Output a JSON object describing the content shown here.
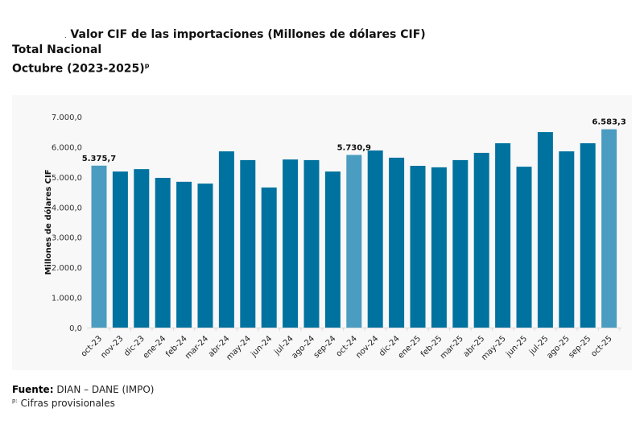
{
  "title": {
    "line1_prefix": ".",
    "line1": "Valor CIF de las importaciones (Millones de dólares CIF)",
    "line2": "Total Nacional",
    "line3": "Octubre (2023-2025)",
    "line3_sup": "p"
  },
  "footer": {
    "source_label": "Fuente:",
    "source_text": "DIAN – DANE (IMPO)",
    "note_sup": "p:",
    "note_text": "Cifras provisionales"
  },
  "colors": {
    "bar": "#00729f",
    "highlight": "#4a9cc0"
  },
  "chart_data": {
    "type": "bar",
    "title": "Valor CIF de las importaciones (Millones de dólares CIF)",
    "xlabel": "",
    "ylabel": "Millones de dólares CIF",
    "ylim": [
      0,
      7000
    ],
    "yticks": [
      0,
      1000,
      2000,
      3000,
      4000,
      5000,
      6000,
      7000
    ],
    "ytick_labels": [
      "0,0",
      "1.000,0",
      "2.000,0",
      "3.000,0",
      "4.000,0",
      "5.000,0",
      "6.000,0",
      "7.000,0"
    ],
    "grid": false,
    "categories": [
      "oct-23",
      "nov-23",
      "dic-23",
      "ene-24",
      "feb-24",
      "mar-24",
      "abr-24",
      "may-24",
      "jun-24",
      "jul-24",
      "ago-24",
      "sep-24",
      "oct-24",
      "nov-24",
      "dic-24",
      "ene-25",
      "feb-25",
      "mar-25",
      "abr-25",
      "may-25",
      "jun-25",
      "jul-25",
      "ago-25",
      "sep-25",
      "oct-25"
    ],
    "values": [
      5375.7,
      5180,
      5260,
      4970,
      4840,
      4780,
      5850,
      5560,
      4650,
      5580,
      5560,
      5180,
      5730.9,
      5880,
      5640,
      5370,
      5320,
      5560,
      5800,
      6120,
      5340,
      6490,
      5850,
      6120,
      6583.3
    ],
    "highlighted": [
      "oct-23",
      "oct-24",
      "oct-25"
    ],
    "data_labels": {
      "oct-23": "5.375,7",
      "oct-24": "5.730,9",
      "oct-25": "6.583,3"
    }
  }
}
